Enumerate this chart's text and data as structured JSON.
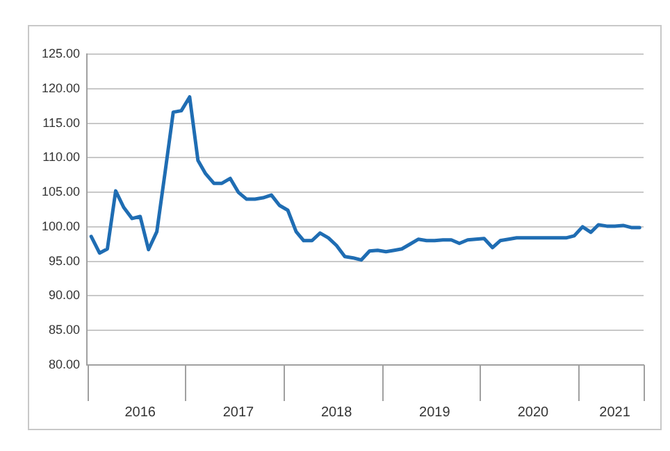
{
  "chart_data": {
    "type": "line",
    "color": "#1f6db3",
    "x": [
      "2016-01",
      "2016-02",
      "2016-03",
      "2016-04",
      "2016-05",
      "2016-06",
      "2016-07",
      "2016-08",
      "2016-09",
      "2016-10",
      "2016-11",
      "2016-12",
      "2017-01",
      "2017-02",
      "2017-03",
      "2017-04",
      "2017-05",
      "2017-06",
      "2017-07",
      "2017-08",
      "2017-09",
      "2017-10",
      "2017-11",
      "2017-12",
      "2018-01",
      "2018-02",
      "2018-03",
      "2018-04",
      "2018-05",
      "2018-06",
      "2018-07",
      "2018-08",
      "2018-09",
      "2018-10",
      "2018-11",
      "2018-12",
      "2019-01",
      "2019-02",
      "2019-03",
      "2019-04",
      "2019-05",
      "2019-06",
      "2019-07",
      "2019-08",
      "2019-09",
      "2019-10",
      "2019-11",
      "2019-12",
      "2020-01",
      "2020-02",
      "2020-03",
      "2020-04",
      "2020-05",
      "2020-06",
      "2020-07",
      "2020-08",
      "2020-09",
      "2020-10",
      "2020-11",
      "2020-12",
      "2021-01",
      "2021-02",
      "2021-03",
      "2021-04",
      "2021-05",
      "2021-06",
      "2021-07",
      "2021-08"
    ],
    "values": [
      98.6,
      96.2,
      96.8,
      105.2,
      102.8,
      101.2,
      101.5,
      96.7,
      99.3,
      107.7,
      116.6,
      116.8,
      118.8,
      109.6,
      107.7,
      106.3,
      106.3,
      107.0,
      105.0,
      104.0,
      104.0,
      104.2,
      104.6,
      103.1,
      102.4,
      99.3,
      98.0,
      98.0,
      99.1,
      98.4,
      97.3,
      95.7,
      95.5,
      95.2,
      96.5,
      96.6,
      96.4,
      96.6,
      96.8,
      97.5,
      98.2,
      98.0,
      98.0,
      98.1,
      98.1,
      97.6,
      98.1,
      98.2,
      98.3,
      97.0,
      98.0,
      98.2,
      98.4,
      98.4,
      98.4,
      98.4,
      98.4,
      98.4,
      98.4,
      98.7,
      100.0,
      99.2,
      100.3,
      100.1,
      100.1,
      100.2,
      99.9,
      99.9
    ],
    "xlim": [
      "2015-12-16",
      "2021-08-16"
    ],
    "xticks": [
      {
        "value": "2016-07",
        "label": "2016"
      },
      {
        "value": "2017-07",
        "label": "2017"
      },
      {
        "value": "2018-07",
        "label": "2018"
      },
      {
        "value": "2019-07",
        "label": "2019"
      },
      {
        "value": "2020-07",
        "label": "2020"
      },
      {
        "value": "2021-05",
        "label": "2021"
      }
    ],
    "ylim": [
      80,
      125
    ],
    "yticks": [
      {
        "value": 80,
        "label": "80.00"
      },
      {
        "value": 85,
        "label": "85.00"
      },
      {
        "value": 90,
        "label": "90.00"
      },
      {
        "value": 95,
        "label": "95.00"
      },
      {
        "value": 100,
        "label": "100.00"
      },
      {
        "value": 105,
        "label": "105.00"
      },
      {
        "value": 110,
        "label": "110.00"
      },
      {
        "value": 115,
        "label": "115.00"
      },
      {
        "value": 120,
        "label": "120.00"
      },
      {
        "value": 125,
        "label": "125.00"
      }
    ],
    "grid": "y",
    "legend": false,
    "marker": "none",
    "line_style": "solid"
  }
}
